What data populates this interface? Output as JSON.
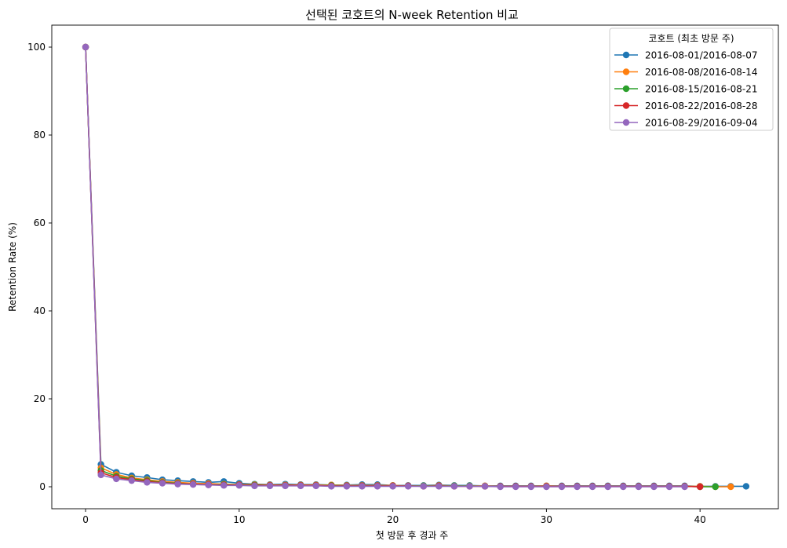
{
  "chart_data": {
    "type": "line",
    "title": "선택된 코호트의 N-week Retention 비교",
    "xlabel": "첫 방문 후 경과 주",
    "ylabel": "Retention Rate (%)",
    "xlim": [
      -2.2,
      45.1
    ],
    "ylim": [
      -5.0,
      105.0
    ],
    "xticks": [
      0,
      10,
      20,
      30,
      40
    ],
    "yticks": [
      0,
      20,
      40,
      60,
      80,
      100
    ],
    "grid": false,
    "legend": {
      "title": "코호트 (최초 방문 주)",
      "position": "top-right"
    },
    "series": [
      {
        "name": "2016-08-01/2016-08-07",
        "color": "#1f77b4",
        "x": [
          0,
          1,
          2,
          3,
          4,
          5,
          6,
          7,
          8,
          9,
          10,
          11,
          12,
          13,
          14,
          15,
          16,
          17,
          18,
          19,
          20,
          21,
          22,
          23,
          24,
          25,
          26,
          27,
          28,
          29,
          30,
          31,
          32,
          33,
          34,
          35,
          36,
          37,
          38,
          39,
          40,
          41,
          42,
          43
        ],
        "values": [
          100,
          5.1,
          3.3,
          2.5,
          2.1,
          1.6,
          1.4,
          1.2,
          1.0,
          1.2,
          0.8,
          0.6,
          0.5,
          0.6,
          0.5,
          0.5,
          0.4,
          0.4,
          0.5,
          0.5,
          0.3,
          0.3,
          0.3,
          0.4,
          0.3,
          0.3,
          0.2,
          0.2,
          0.2,
          0.2,
          0.2,
          0.2,
          0.2,
          0.2,
          0.2,
          0.2,
          0.2,
          0.2,
          0.2,
          0.2,
          0.1,
          0.1,
          0.1,
          0.1
        ]
      },
      {
        "name": "2016-08-08/2016-08-14",
        "color": "#ff7f0e",
        "x": [
          0,
          1,
          2,
          3,
          4,
          5,
          6,
          7,
          8,
          9,
          10,
          11,
          12,
          13,
          14,
          15,
          16,
          17,
          18,
          19,
          20,
          21,
          22,
          23,
          24,
          25,
          26,
          27,
          28,
          29,
          30,
          31,
          32,
          33,
          34,
          35,
          36,
          37,
          38,
          39,
          40,
          41,
          42
        ],
        "values": [
          100,
          4.3,
          2.8,
          2.0,
          1.6,
          1.2,
          1.0,
          0.8,
          0.7,
          0.6,
          0.5,
          0.5,
          0.4,
          0.4,
          0.4,
          0.4,
          0.4,
          0.3,
          0.3,
          0.3,
          0.3,
          0.2,
          0.2,
          0.3,
          0.2,
          0.2,
          0.2,
          0.1,
          0.1,
          0.1,
          0.2,
          0.1,
          0.1,
          0.1,
          0.1,
          0.1,
          0.1,
          0.1,
          0.1,
          0.1,
          0.1,
          0.0,
          0.0
        ]
      },
      {
        "name": "2016-08-15/2016-08-21",
        "color": "#2ca02c",
        "x": [
          0,
          1,
          2,
          3,
          4,
          5,
          6,
          7,
          8,
          9,
          10,
          11,
          12,
          13,
          14,
          15,
          16,
          17,
          18,
          19,
          20,
          21,
          22,
          23,
          24,
          25,
          26,
          27,
          28,
          29,
          30,
          31,
          32,
          33,
          34,
          35,
          36,
          37,
          38,
          39,
          40,
          41
        ],
        "values": [
          100,
          3.7,
          2.4,
          1.8,
          1.4,
          1.0,
          0.8,
          0.6,
          0.5,
          0.5,
          0.4,
          0.4,
          0.3,
          0.3,
          0.3,
          0.3,
          0.3,
          0.2,
          0.2,
          0.2,
          0.2,
          0.2,
          0.2,
          0.2,
          0.2,
          0.2,
          0.1,
          0.1,
          0.1,
          0.1,
          0.1,
          0.1,
          0.1,
          0.1,
          0.1,
          0.1,
          0.1,
          0.1,
          0.1,
          0.1,
          0.0,
          0.0
        ]
      },
      {
        "name": "2016-08-22/2016-08-28",
        "color": "#d62728",
        "x": [
          0,
          1,
          2,
          3,
          4,
          5,
          6,
          7,
          8,
          9,
          10,
          11,
          12,
          13,
          14,
          15,
          16,
          17,
          18,
          19,
          20,
          21,
          22,
          23,
          24,
          25,
          26,
          27,
          28,
          29,
          30,
          31,
          32,
          33,
          34,
          35,
          36,
          37,
          38,
          39,
          40
        ],
        "values": [
          100,
          3.2,
          2.1,
          1.6,
          1.2,
          0.9,
          0.7,
          0.6,
          0.5,
          0.4,
          0.4,
          0.3,
          0.3,
          0.3,
          0.3,
          0.3,
          0.2,
          0.2,
          0.2,
          0.2,
          0.2,
          0.2,
          0.1,
          0.2,
          0.1,
          0.1,
          0.1,
          0.1,
          0.1,
          0.1,
          0.1,
          0.1,
          0.1,
          0.1,
          0.1,
          0.1,
          0.1,
          0.1,
          0.1,
          0.1,
          0.0
        ]
      },
      {
        "name": "2016-08-29/2016-09-04",
        "color": "#9467bd",
        "x": [
          0,
          1,
          2,
          3,
          4,
          5,
          6,
          7,
          8,
          9,
          10,
          11,
          12,
          13,
          14,
          15,
          16,
          17,
          18,
          19,
          20,
          21,
          22,
          23,
          24,
          25,
          26,
          27,
          28,
          29,
          30,
          31,
          32,
          33,
          34,
          35,
          36,
          37,
          38,
          39
        ],
        "values": [
          100,
          2.7,
          1.8,
          1.4,
          1.0,
          0.8,
          0.6,
          0.5,
          0.4,
          0.3,
          0.3,
          0.2,
          0.2,
          0.2,
          0.2,
          0.2,
          0.1,
          0.1,
          0.1,
          0.1,
          0.1,
          0.1,
          0.1,
          0.1,
          0.1,
          0.1,
          0.1,
          0.0,
          0.0,
          0.0,
          0.0,
          0.0,
          0.0,
          0.0,
          0.0,
          0.0,
          0.0,
          0.0,
          0.0,
          0.0
        ]
      }
    ]
  }
}
